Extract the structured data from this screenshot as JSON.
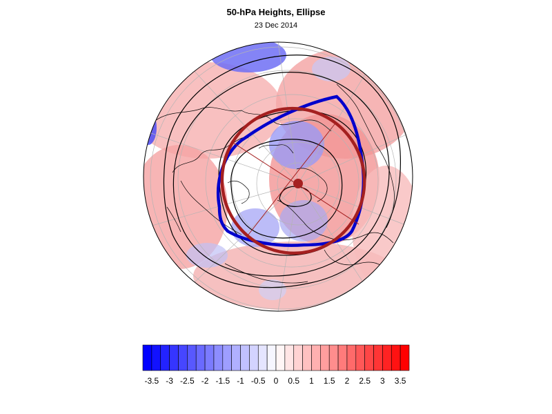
{
  "title": "50-hPa Heights, Ellipse",
  "subtitle": "23 Dec 2014",
  "colorbar": {
    "min": -3.75,
    "max": 3.75,
    "step": 0.25,
    "tick_labels": [
      "-3.5",
      "-3",
      "-2.5",
      "-2",
      "-1.5",
      "-1",
      "-0.5",
      "0",
      "0.5",
      "1",
      "1.5",
      "2",
      "2.5",
      "3",
      "3.5"
    ],
    "tick_values": [
      -3.5,
      -3,
      -2.5,
      -2,
      -1.5,
      -1,
      -0.5,
      0,
      0.5,
      1,
      1.5,
      2,
      2.5,
      3,
      3.5
    ],
    "negative_color": "#0000ff",
    "positive_color": "#ff0000",
    "neutral_color": "#ffffff"
  },
  "map": {
    "projection": "orthographic, north-polar view",
    "ocean_color": "#ffffff",
    "coastline_color": "#000000",
    "graticule_color": "#b4b4b4",
    "observed_ellipse_color": "#0000cc",
    "fitted_ellipse_color": "#a52020",
    "height_contour_color": "#000000"
  }
}
